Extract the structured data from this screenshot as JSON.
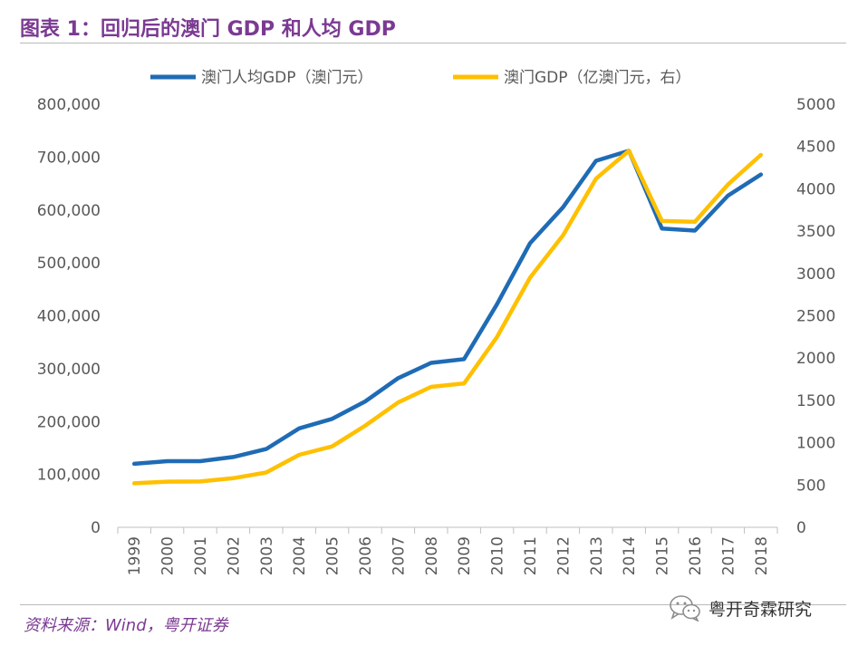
{
  "title": "图表 1：回归后的澳门 GDP 和人均 GDP",
  "source": "资料来源：Wind，粤开证券",
  "watermark": {
    "text": "粤开奇霖研究",
    "icon": "wechat-icon"
  },
  "colors": {
    "title": "#7b3a92",
    "per_capita_line": "#1f6bb5",
    "total_line": "#ffc000",
    "axis_text": "#595959",
    "axis_line": "#bfbfbf"
  },
  "chart_data": {
    "type": "line",
    "title": "",
    "x": [
      "1999",
      "2000",
      "2001",
      "2002",
      "2003",
      "2004",
      "2005",
      "2006",
      "2007",
      "2008",
      "2009",
      "2010",
      "2011",
      "2012",
      "2013",
      "2014",
      "2015",
      "2016",
      "2017",
      "2018"
    ],
    "series": [
      {
        "name": "澳门人均GDP（澳门元）",
        "axis": "left",
        "values": [
          120000,
          125000,
          125000,
          133000,
          148000,
          187000,
          205000,
          238000,
          282000,
          311000,
          318000,
          422000,
          537000,
          605000,
          693000,
          712000,
          565000,
          561000,
          627000,
          667000
        ]
      },
      {
        "name": "澳门GDP（亿澳门元，右）",
        "axis": "right",
        "values": [
          520,
          540,
          542,
          580,
          648,
          856,
          956,
          1200,
          1475,
          1660,
          1700,
          2250,
          2950,
          3450,
          4120,
          4450,
          3620,
          3610,
          4050,
          4400
        ]
      }
    ],
    "y_left": {
      "min": 0,
      "max": 800000,
      "step": 100000,
      "tick_labels": [
        "0",
        "100,000",
        "200,000",
        "300,000",
        "400,000",
        "500,000",
        "600,000",
        "700,000",
        "800,000"
      ]
    },
    "y_right": {
      "min": 0,
      "max": 5000,
      "step": 500,
      "tick_labels": [
        "0",
        "500",
        "1000",
        "1500",
        "2000",
        "2500",
        "3000",
        "3500",
        "4000",
        "4500",
        "5000"
      ]
    },
    "legend_position": "top",
    "grid": false
  }
}
